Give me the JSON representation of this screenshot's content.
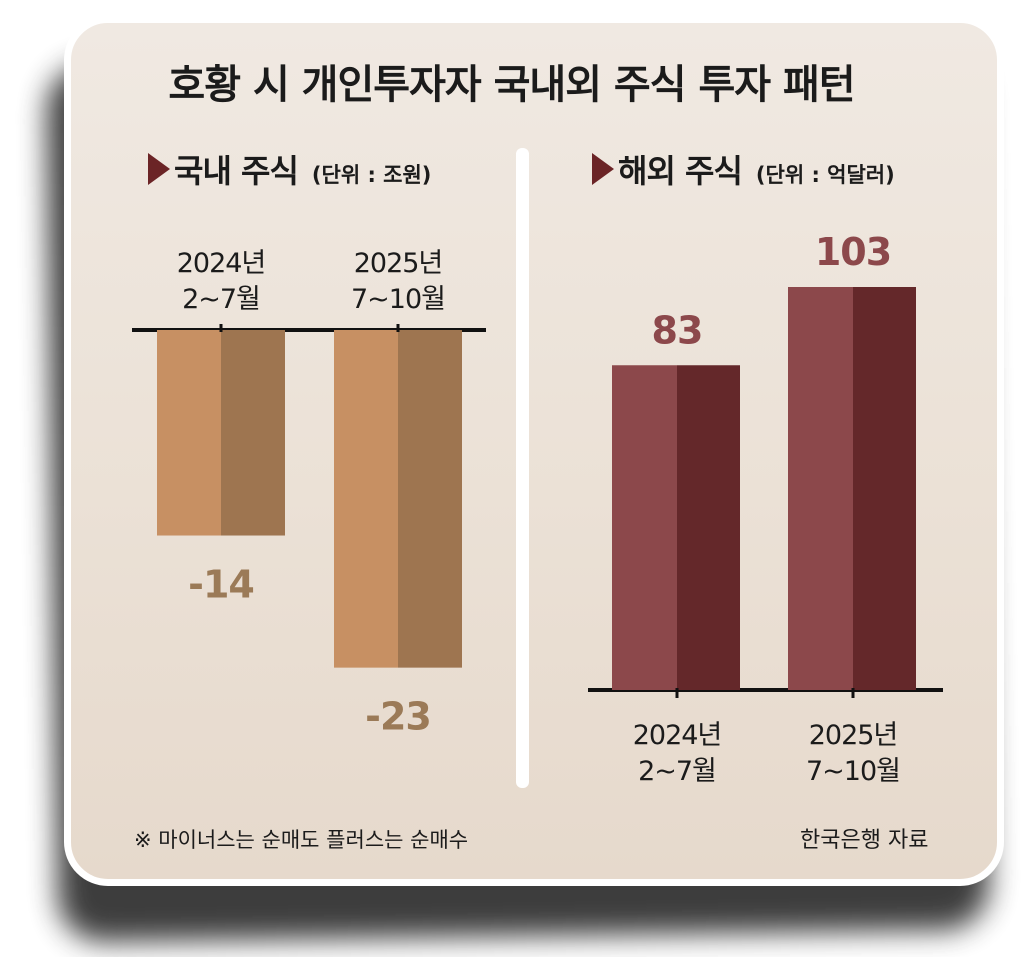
{
  "title": "호황 시 개인투자자 국내외 주식 투자 패턴",
  "footnote": "※ 마이너스는 순매도 플러스는 순매수",
  "source": "한국은행 자료",
  "colors": {
    "domestic_light": "#c79063",
    "domestic_dark": "#9e7550",
    "domestic_label": "#9b7a57",
    "overseas_light": "#8c484b",
    "overseas_dark": "#64282a",
    "overseas_label": "#8c484b"
  },
  "chart_data": [
    {
      "type": "bar",
      "title": "국내 주식",
      "unit": "(단위 : 조원)",
      "categories": [
        [
          "2024년",
          "2~7월"
        ],
        [
          "2025년",
          "7~10월"
        ]
      ],
      "values": [
        -14,
        -23
      ],
      "value_labels": [
        "-14",
        "-23"
      ],
      "ylim": [
        -25,
        0
      ],
      "grid": false
    },
    {
      "type": "bar",
      "title": "해외 주식",
      "unit": "(단위 : 억달러)",
      "categories": [
        [
          "2024년",
          "2~7월"
        ],
        [
          "2025년",
          "7~10월"
        ]
      ],
      "values": [
        83,
        103
      ],
      "value_labels": [
        "83",
        "103"
      ],
      "ylim": [
        0,
        110
      ],
      "grid": false
    }
  ]
}
